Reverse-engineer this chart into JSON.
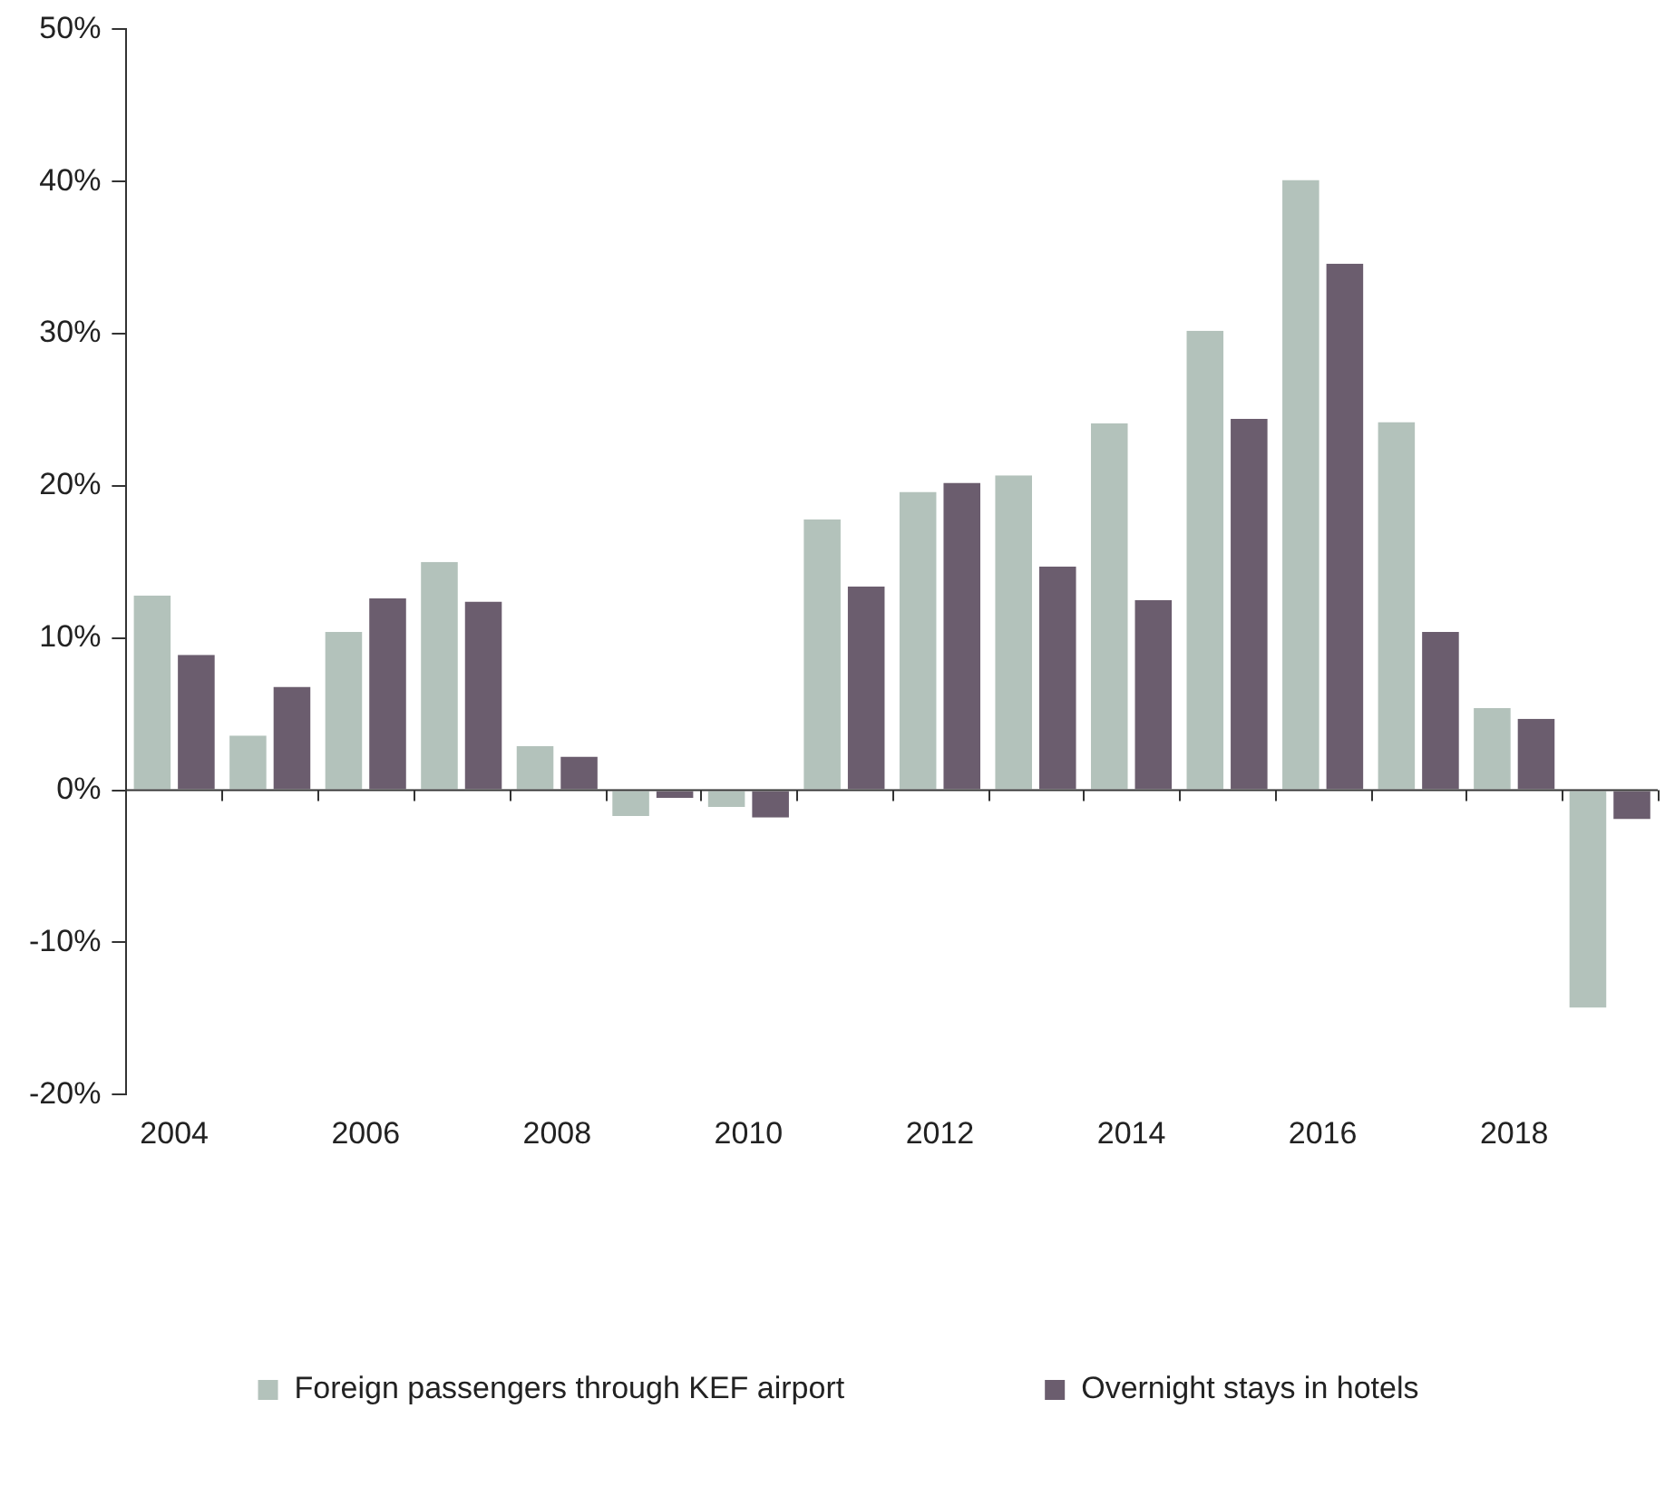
{
  "chart_data": {
    "type": "bar",
    "categories": [
      "2004",
      null,
      "2006",
      null,
      "2008",
      null,
      "2010",
      null,
      "2012",
      null,
      "2014",
      null,
      "2016",
      null,
      "2018",
      null
    ],
    "series": [
      {
        "name": "Foreign passengers through KEF airport",
        "color": "#b3c2bb",
        "values": [
          12.8,
          3.6,
          10.4,
          15.0,
          2.9,
          -1.7,
          -1.1,
          17.8,
          19.6,
          20.7,
          24.1,
          30.2,
          40.1,
          24.2,
          5.4,
          -14.3
        ]
      },
      {
        "name": "Overnight stays in hotels",
        "color": "#6b5d6e",
        "values": [
          8.9,
          6.8,
          12.6,
          12.4,
          2.2,
          -0.5,
          -1.8,
          13.4,
          20.2,
          14.7,
          12.5,
          24.4,
          34.6,
          10.4,
          4.7,
          -1.9
        ]
      }
    ],
    "ylim": [
      -20,
      50
    ],
    "yticks": [
      {
        "value": -20,
        "label": "-20%"
      },
      {
        "value": -10,
        "label": "-10%"
      },
      {
        "value": 0,
        "label": "0%"
      },
      {
        "value": 10,
        "label": "10%"
      },
      {
        "value": 20,
        "label": "20%"
      },
      {
        "value": 30,
        "label": "30%"
      },
      {
        "value": 40,
        "label": "40%"
      },
      {
        "value": 50,
        "label": "50%"
      }
    ],
    "ref_lines": [
      {
        "axis": "y",
        "value": 0,
        "color": "#333333"
      }
    ],
    "grid": false,
    "legend": "bottom"
  }
}
